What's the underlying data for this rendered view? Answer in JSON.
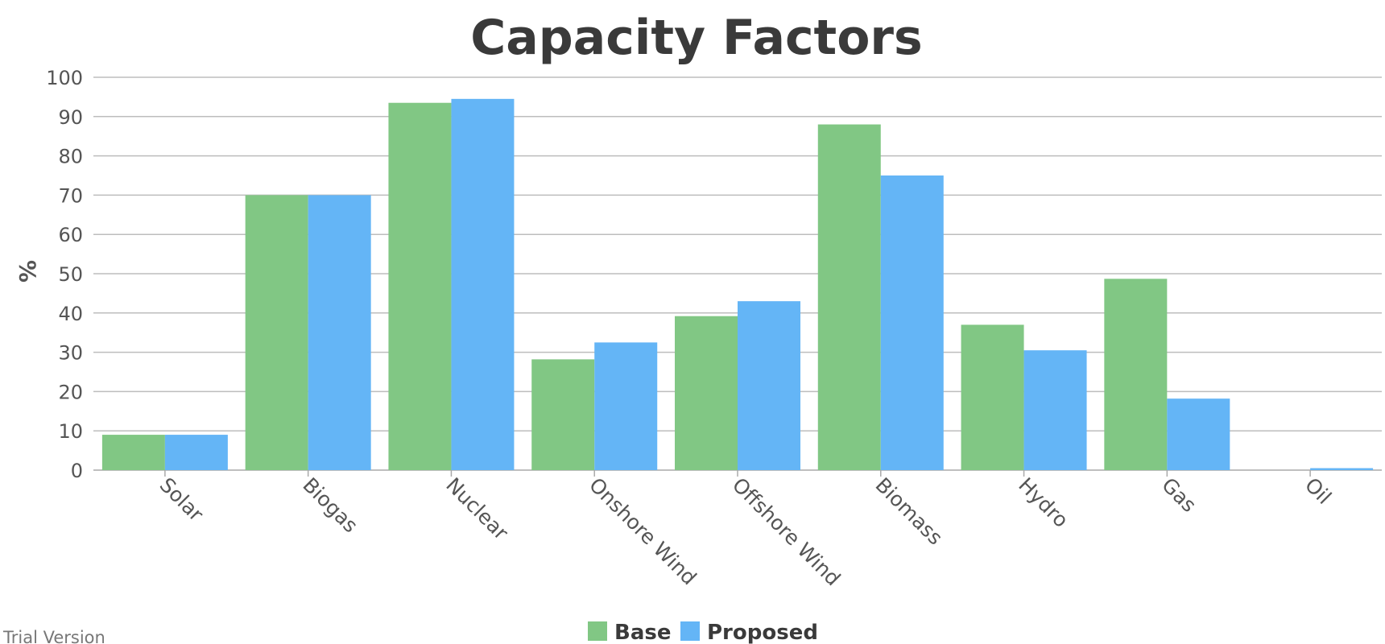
{
  "chart_data": {
    "type": "bar",
    "title": "Capacity Factors",
    "xlabel": "",
    "ylabel": "%",
    "ylim": [
      0,
      100
    ],
    "yticks": [
      0,
      10,
      20,
      30,
      40,
      50,
      60,
      70,
      80,
      90,
      100
    ],
    "grid": true,
    "legend_position": "bottom-center",
    "categories": [
      "Solar",
      "Biogas",
      "Nuclear",
      "Onshore Wind",
      "Offshore Wind",
      "Biomass",
      "Hydro",
      "Gas",
      "Oil"
    ],
    "series": [
      {
        "name": "Base",
        "color": "#81c784",
        "values": [
          9,
          70,
          93.5,
          28.2,
          39.2,
          88,
          37,
          48.7,
          0
        ]
      },
      {
        "name": "Proposed",
        "color": "#64b5f6",
        "values": [
          9,
          70,
          94.5,
          32.5,
          43,
          75,
          30.5,
          18.2,
          0.5
        ]
      }
    ]
  },
  "watermark": "Trial Version"
}
